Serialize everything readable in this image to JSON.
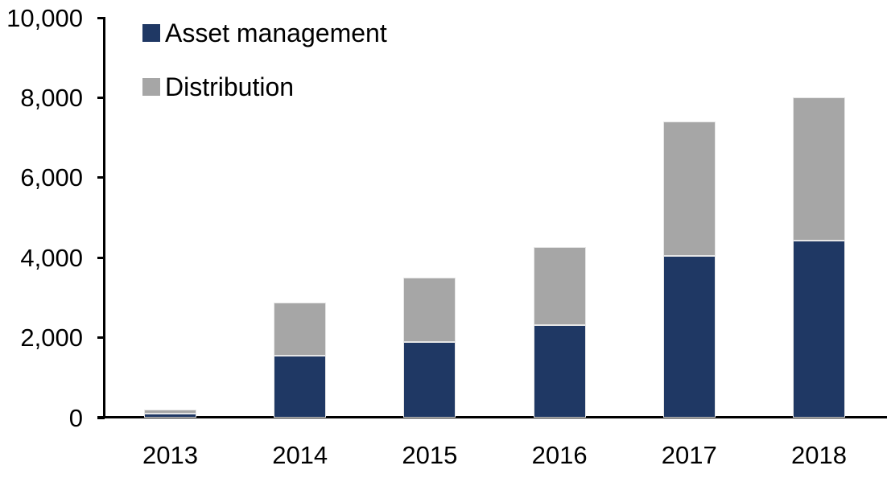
{
  "chart_data": {
    "type": "bar",
    "stacked": true,
    "title": "",
    "xlabel": "",
    "ylabel": "",
    "grid": false,
    "legend_position": "inside-top-left",
    "categories": [
      "2013",
      "2014",
      "2015",
      "2016",
      "2017",
      "2018"
    ],
    "series": [
      {
        "name": "Asset management",
        "color": "#1f3864",
        "values": [
          100,
          1550,
          1900,
          2310,
          4040,
          4420
        ]
      },
      {
        "name": "Distribution",
        "color": "#a6a6a6",
        "values": [
          100,
          1330,
          1600,
          1950,
          3360,
          3580
        ]
      }
    ],
    "ylim": [
      0,
      10000
    ],
    "yticks": [
      {
        "value": 0,
        "label": "0"
      },
      {
        "value": 2000,
        "label": "2,000"
      },
      {
        "value": 4000,
        "label": "4,000"
      },
      {
        "value": 6000,
        "label": "6,000"
      },
      {
        "value": 8000,
        "label": "8,000"
      },
      {
        "value": 10000,
        "label": "10,000"
      }
    ]
  },
  "colors": {
    "axis": "#000000",
    "background": "#ffffff",
    "text": "#000000",
    "bar_border": "#e6e6e6"
  }
}
